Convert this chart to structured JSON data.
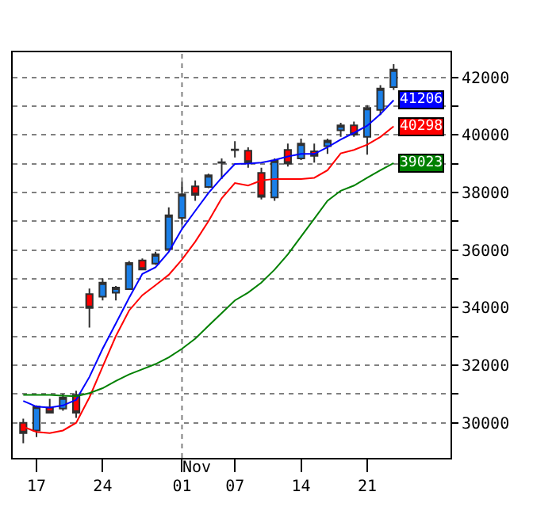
{
  "chart_data": {
    "type": "candlestick",
    "categories": [
      null,
      "17",
      null,
      null,
      null,
      null,
      "24",
      null,
      null,
      null,
      null,
      null,
      "01",
      null,
      null,
      null,
      "07",
      null,
      null,
      null,
      null,
      "14",
      null,
      null,
      null,
      null,
      "21",
      null,
      null
    ],
    "ohlc": [
      [
        30000,
        30140,
        29290,
        29640
      ],
      [
        29730,
        30600,
        29500,
        30560
      ],
      [
        30530,
        30830,
        30320,
        30350
      ],
      [
        30490,
        31010,
        30420,
        30880
      ],
      [
        30970,
        31110,
        30170,
        30350
      ],
      [
        34470,
        34660,
        33310,
        33990
      ],
      [
        34380,
        35010,
        34250,
        34870
      ],
      [
        34520,
        34750,
        34250,
        34700
      ],
      [
        34640,
        35620,
        34640,
        35550
      ],
      [
        35640,
        35710,
        35320,
        35320
      ],
      [
        35530,
        35940,
        35490,
        35850
      ],
      [
        36030,
        37480,
        36030,
        37210
      ],
      [
        37120,
        38370,
        36880,
        37940
      ],
      [
        38210,
        38420,
        37710,
        37920
      ],
      [
        38190,
        38650,
        38150,
        38600
      ],
      [
        39030,
        39180,
        38470,
        39050
      ],
      [
        39470,
        39780,
        39220,
        39490
      ],
      [
        39450,
        39570,
        38860,
        39040
      ],
      [
        38680,
        38860,
        37760,
        37850
      ],
      [
        37830,
        39180,
        37710,
        39110
      ],
      [
        39480,
        39700,
        38900,
        39000
      ],
      [
        39180,
        39870,
        39130,
        39700
      ],
      [
        39430,
        39700,
        39040,
        39270
      ],
      [
        39610,
        39870,
        39340,
        39800
      ],
      [
        40160,
        40420,
        39930,
        40330
      ],
      [
        40330,
        40460,
        39930,
        40010
      ],
      [
        39930,
        41030,
        39310,
        40940
      ],
      [
        40870,
        41730,
        40690,
        41610
      ],
      [
        41660,
        42460,
        41560,
        42270
      ]
    ],
    "colors": [
      "#ff0000",
      "#1a7fe8",
      "#ff0000",
      "#1a7fe8",
      "#ff0000",
      "#ff0000",
      "#1a7fe8",
      "#1a7fe8",
      "#1a7fe8",
      "#ff0000",
      "#1a7fe8",
      "#1a7fe8",
      "#1a7fe8",
      "#ff0000",
      "#1a7fe8",
      "#303030",
      "#303030",
      "#ff0000",
      "#ff0000",
      "#1a7fe8",
      "#ff0000",
      "#1a7fe8",
      "#ff0000",
      "#1a7fe8",
      "#1a7fe8",
      "#ff0000",
      "#1a7fe8",
      "#1a7fe8",
      "#1a7fe8"
    ],
    "series": [
      {
        "type": "line",
        "color": "#0000ff",
        "values": [
          30760,
          30560,
          30530,
          30600,
          30800,
          31590,
          32570,
          33450,
          34340,
          35170,
          35400,
          35940,
          36730,
          37360,
          37980,
          38510,
          38990,
          39000,
          39040,
          39130,
          39250,
          39340,
          39340,
          39570,
          39840,
          40070,
          40320,
          40720,
          41206
        ],
        "value_labels": [
          null,
          null,
          null,
          null,
          null,
          null,
          null,
          null,
          null,
          null,
          null,
          null,
          null,
          null,
          null,
          null,
          null,
          null,
          null,
          null,
          null,
          null,
          null,
          null,
          null,
          null,
          null,
          null,
          "41206"
        ]
      },
      {
        "type": "line",
        "color": "#ff0000",
        "values": [
          29860,
          29680,
          29640,
          29730,
          30000,
          30880,
          31950,
          33010,
          33900,
          34430,
          34780,
          35140,
          35670,
          36290,
          37000,
          37800,
          38330,
          38240,
          38420,
          38470,
          38470,
          38470,
          38510,
          38770,
          39360,
          39480,
          39660,
          39930,
          40298
        ],
        "value_labels": [
          null,
          null,
          null,
          null,
          null,
          null,
          null,
          null,
          null,
          null,
          null,
          null,
          null,
          null,
          null,
          null,
          null,
          null,
          null,
          null,
          null,
          null,
          null,
          null,
          null,
          null,
          null,
          null,
          "40298"
        ]
      },
      {
        "type": "line",
        "color": "#008000",
        "values": [
          30970,
          30970,
          30970,
          30940,
          30920,
          31030,
          31200,
          31450,
          31680,
          31860,
          32040,
          32270,
          32570,
          32920,
          33370,
          33810,
          34250,
          34520,
          34870,
          35320,
          35850,
          36470,
          37090,
          37710,
          38060,
          38240,
          38510,
          38770,
          39023
        ],
        "value_labels": [
          null,
          null,
          null,
          null,
          null,
          null,
          null,
          null,
          null,
          null,
          null,
          null,
          null,
          null,
          null,
          null,
          null,
          null,
          null,
          null,
          null,
          null,
          null,
          null,
          null,
          null,
          null,
          null,
          "39023"
        ]
      }
    ],
    "ylim": [
      28780,
      42870
    ],
    "yticks": [
      30000,
      {
        "value": 31000,
        "label": null
      },
      32000,
      {
        "value": 33000,
        "label": null
      },
      34000,
      {
        "value": 35000,
        "label": null
      },
      36000,
      {
        "value": 37000,
        "label": null
      },
      38000,
      {
        "value": 39000,
        "label": null
      },
      40000,
      {
        "value": 41000,
        "label": null
      },
      42000
    ],
    "ref_lines": [
      {
        "axis": "x",
        "value": "01",
        "label": "Nov",
        "line_style": "dotted",
        "color": "#808080"
      }
    ],
    "grid": "y"
  }
}
